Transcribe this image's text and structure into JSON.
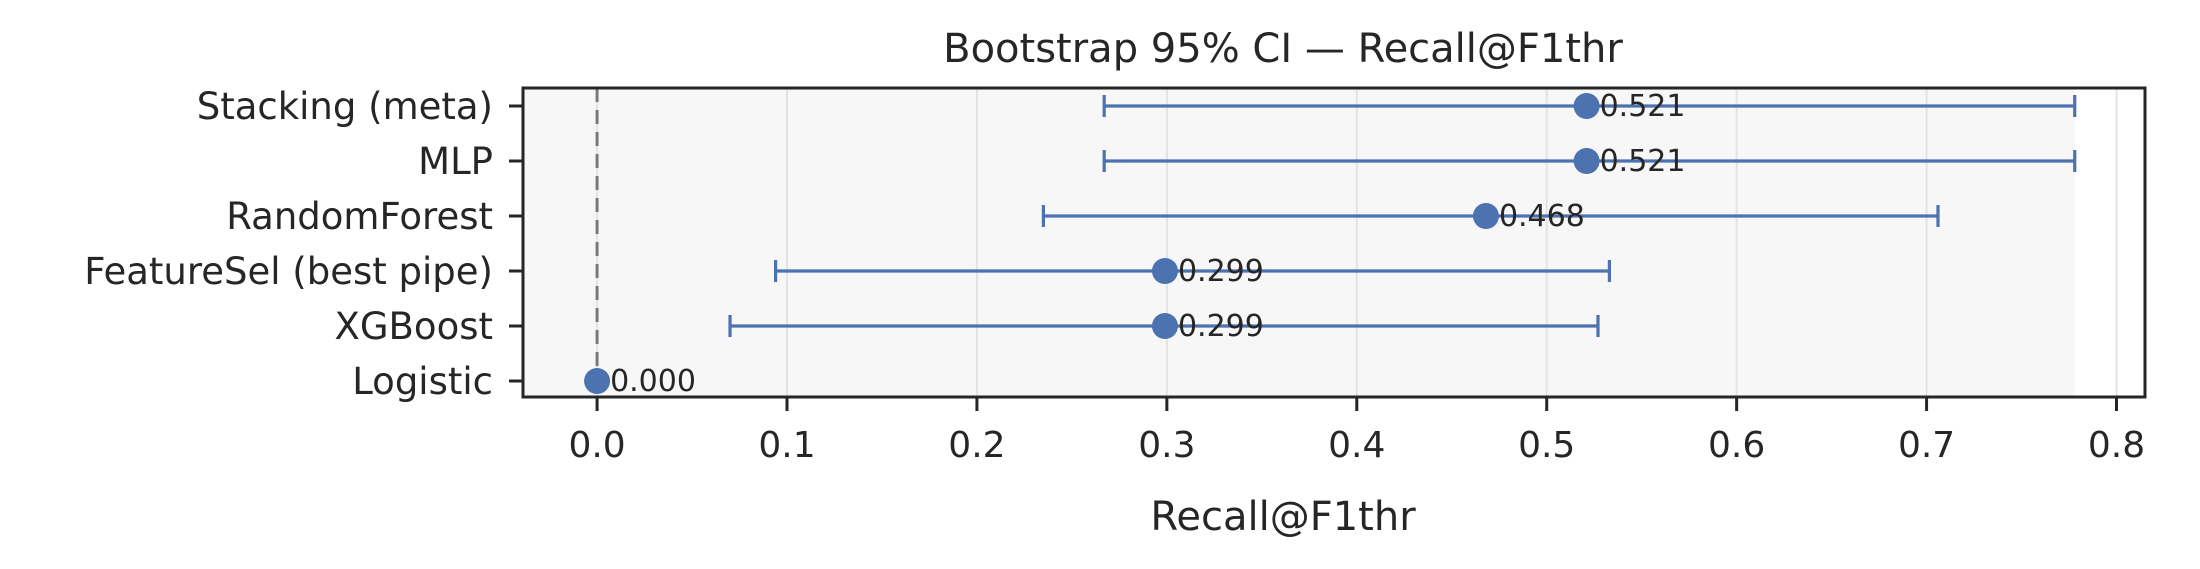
{
  "chart_data": {
    "type": "errorbar",
    "title": "Bootstrap 95% CI — Recall@F1thr",
    "xlabel": "Recall@F1thr",
    "ylabel": "",
    "xlim": [
      -0.039,
      0.815
    ],
    "xticks": [
      0.0,
      0.1,
      0.2,
      0.3,
      0.4,
      0.5,
      0.6,
      0.7,
      0.8
    ],
    "xtick_labels": [
      "0.0",
      "0.1",
      "0.2",
      "0.3",
      "0.4",
      "0.5",
      "0.6",
      "0.7",
      "0.8"
    ],
    "grid": "vertical",
    "reference_line": {
      "x": 0.0,
      "style": "dashed"
    },
    "categories": [
      "Stacking (meta)",
      "MLP",
      "RandomForest",
      "FeatureSel (best pipe)",
      "XGBoost",
      "Logistic"
    ],
    "points": [
      {
        "label": "Stacking (meta)",
        "value": 0.521,
        "value_label": "0.521",
        "ci_low": 0.267,
        "ci_high": 0.778
      },
      {
        "label": "MLP",
        "value": 0.521,
        "value_label": "0.521",
        "ci_low": 0.267,
        "ci_high": 0.778
      },
      {
        "label": "RandomForest",
        "value": 0.468,
        "value_label": "0.468",
        "ci_low": 0.235,
        "ci_high": 0.706
      },
      {
        "label": "FeatureSel (best pipe)",
        "value": 0.299,
        "value_label": "0.299",
        "ci_low": 0.094,
        "ci_high": 0.533
      },
      {
        "label": "XGBoost",
        "value": 0.299,
        "value_label": "0.299",
        "ci_low": 0.07,
        "ci_high": 0.527
      },
      {
        "label": "Logistic",
        "value": 0.0,
        "value_label": "0.000",
        "ci_low": 0.0,
        "ci_high": 0.0
      }
    ],
    "shaded_region": [
      -0.039,
      0.778
    ],
    "colors": {
      "series": "#4c72b0",
      "reference_line": "#7a7a7a",
      "grid": "#e3e3e3",
      "shade": "#f7f7f7",
      "axes": "#262626",
      "text": "#262626"
    }
  }
}
